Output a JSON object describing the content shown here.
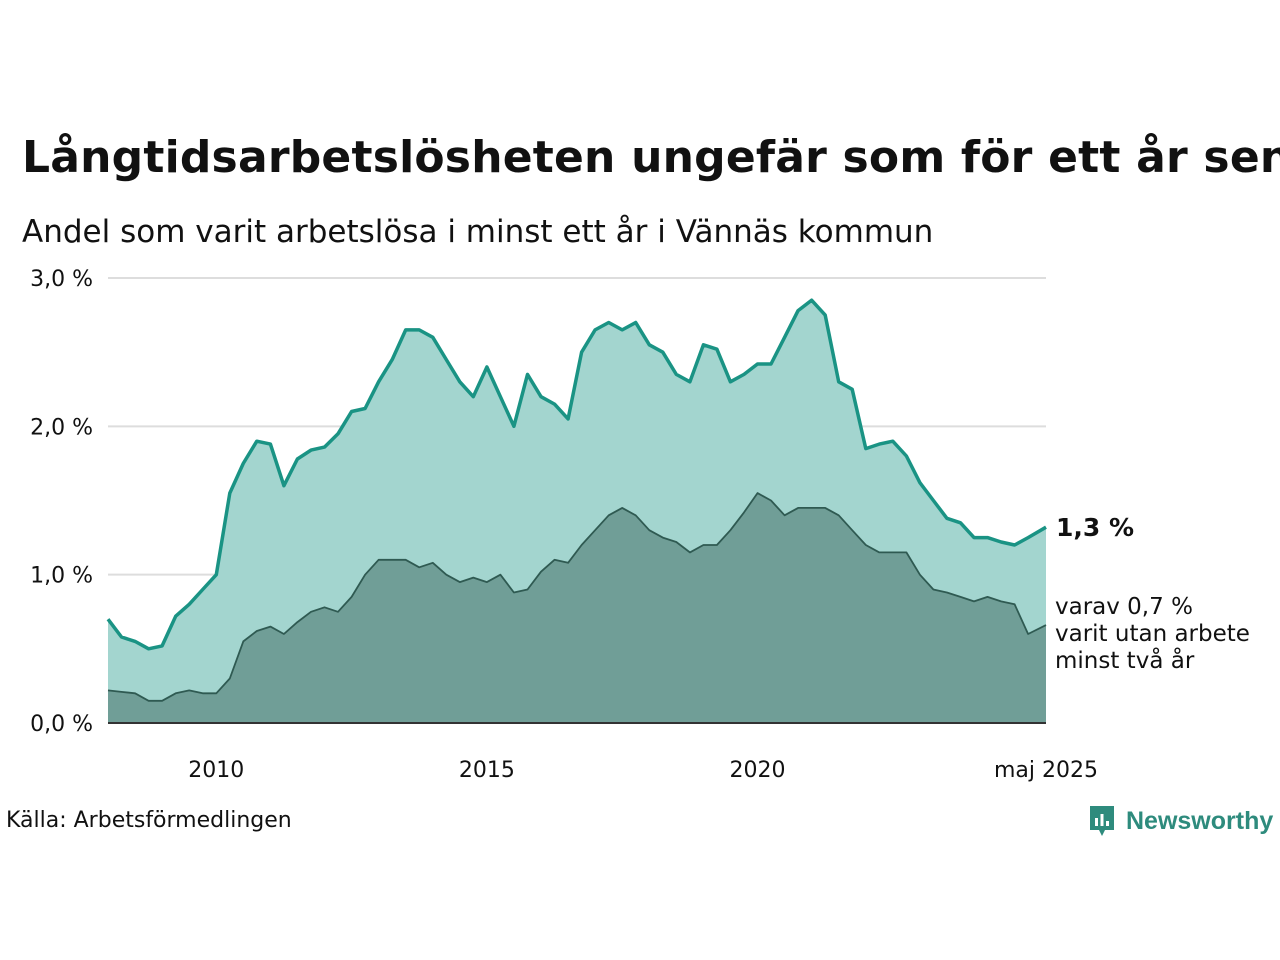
{
  "title": "Långtidsarbetslösheten ungefär som för ett år sen",
  "subtitle": "Andel som varit arbetslösa i minst ett år i Vännäs kommun",
  "source": "Källa: Arbetsförmedlingen",
  "brand": "Newsworthy",
  "colors": {
    "total_line": "#1a9384",
    "total_fill": "#a3d5cf",
    "long_line": "#2f5a52",
    "long_fill": "#709e97",
    "grid": "#dddddd",
    "brand": "#2e8b7d"
  },
  "chart_data": {
    "type": "area",
    "ylim": [
      0,
      3
    ],
    "y_ticks": [
      0,
      1,
      2,
      3
    ],
    "y_tick_labels": [
      "0,0 %",
      "1,0 %",
      "2,0 %",
      "3,0 %"
    ],
    "x_ticks": [
      2010,
      2015,
      2020,
      2025.33
    ],
    "x_tick_labels": [
      "2010",
      "2015",
      "2020",
      "maj 2025"
    ],
    "xlim": [
      2008.0,
      2025.33
    ],
    "series": [
      {
        "key": "total",
        "label": "1,3 %",
        "x": [
          2008.0,
          2008.25,
          2008.5,
          2008.75,
          2009.0,
          2009.25,
          2009.5,
          2009.75,
          2010.0,
          2010.25,
          2010.5,
          2010.75,
          2011.0,
          2011.25,
          2011.5,
          2011.75,
          2012.0,
          2012.25,
          2012.5,
          2012.75,
          2013.0,
          2013.25,
          2013.5,
          2013.75,
          2014.0,
          2014.25,
          2014.5,
          2014.75,
          2015.0,
          2015.25,
          2015.5,
          2015.75,
          2016.0,
          2016.25,
          2016.5,
          2016.75,
          2017.0,
          2017.25,
          2017.5,
          2017.75,
          2018.0,
          2018.25,
          2018.5,
          2018.75,
          2019.0,
          2019.25,
          2019.5,
          2019.75,
          2020.0,
          2020.25,
          2020.5,
          2020.75,
          2021.0,
          2021.25,
          2021.5,
          2021.75,
          2022.0,
          2022.25,
          2022.5,
          2022.75,
          2023.0,
          2023.25,
          2023.5,
          2023.75,
          2024.0,
          2024.25,
          2024.5,
          2024.75,
          2025.0,
          2025.33
        ],
        "values": [
          0.7,
          0.58,
          0.55,
          0.5,
          0.52,
          0.72,
          0.8,
          0.9,
          1.0,
          1.55,
          1.75,
          1.9,
          1.88,
          1.6,
          1.78,
          1.84,
          1.86,
          1.95,
          2.1,
          2.12,
          2.3,
          2.45,
          2.65,
          2.65,
          2.6,
          2.45,
          2.3,
          2.2,
          2.4,
          2.2,
          2.0,
          2.35,
          2.2,
          2.15,
          2.05,
          2.5,
          2.65,
          2.7,
          2.65,
          2.7,
          2.55,
          2.5,
          2.35,
          2.3,
          2.55,
          2.52,
          2.3,
          2.35,
          2.42,
          2.42,
          2.6,
          2.78,
          2.85,
          2.75,
          2.3,
          2.25,
          1.85,
          1.88,
          1.9,
          1.8,
          1.62,
          1.5,
          1.38,
          1.35,
          1.25,
          1.25,
          1.22,
          1.2,
          1.25,
          1.32
        ]
      },
      {
        "key": "long",
        "label": "varav 0,7 % varit utan arbete minst två år",
        "x": [
          2008.0,
          2008.25,
          2008.5,
          2008.75,
          2009.0,
          2009.25,
          2009.5,
          2009.75,
          2010.0,
          2010.25,
          2010.5,
          2010.75,
          2011.0,
          2011.25,
          2011.5,
          2011.75,
          2012.0,
          2012.25,
          2012.5,
          2012.75,
          2013.0,
          2013.25,
          2013.5,
          2013.75,
          2014.0,
          2014.25,
          2014.5,
          2014.75,
          2015.0,
          2015.25,
          2015.5,
          2015.75,
          2016.0,
          2016.25,
          2016.5,
          2016.75,
          2017.0,
          2017.25,
          2017.5,
          2017.75,
          2018.0,
          2018.25,
          2018.5,
          2018.75,
          2019.0,
          2019.25,
          2019.5,
          2019.75,
          2020.0,
          2020.25,
          2020.5,
          2020.75,
          2021.0,
          2021.25,
          2021.5,
          2021.75,
          2022.0,
          2022.25,
          2022.5,
          2022.75,
          2023.0,
          2023.25,
          2023.5,
          2023.75,
          2024.0,
          2024.25,
          2024.5,
          2024.75,
          2025.0,
          2025.33
        ],
        "values": [
          0.22,
          0.21,
          0.2,
          0.15,
          0.15,
          0.2,
          0.22,
          0.2,
          0.2,
          0.3,
          0.55,
          0.62,
          0.65,
          0.6,
          0.68,
          0.75,
          0.78,
          0.75,
          0.85,
          1.0,
          1.1,
          1.1,
          1.1,
          1.05,
          1.08,
          1.0,
          0.95,
          0.98,
          0.95,
          1.0,
          0.88,
          0.9,
          1.02,
          1.1,
          1.08,
          1.2,
          1.3,
          1.4,
          1.45,
          1.4,
          1.3,
          1.25,
          1.22,
          1.15,
          1.2,
          1.2,
          1.3,
          1.42,
          1.55,
          1.5,
          1.4,
          1.45,
          1.45,
          1.45,
          1.4,
          1.3,
          1.2,
          1.15,
          1.15,
          1.15,
          1.0,
          0.9,
          0.88,
          0.85,
          0.82,
          0.85,
          0.82,
          0.8,
          0.6,
          0.66
        ]
      }
    ],
    "annotations": [
      {
        "text": "1,3 %",
        "bold": true,
        "series": "total"
      },
      {
        "lines": [
          "varav 0,7 %",
          "varit utan arbete",
          "minst två år"
        ],
        "series": "long"
      }
    ]
  }
}
